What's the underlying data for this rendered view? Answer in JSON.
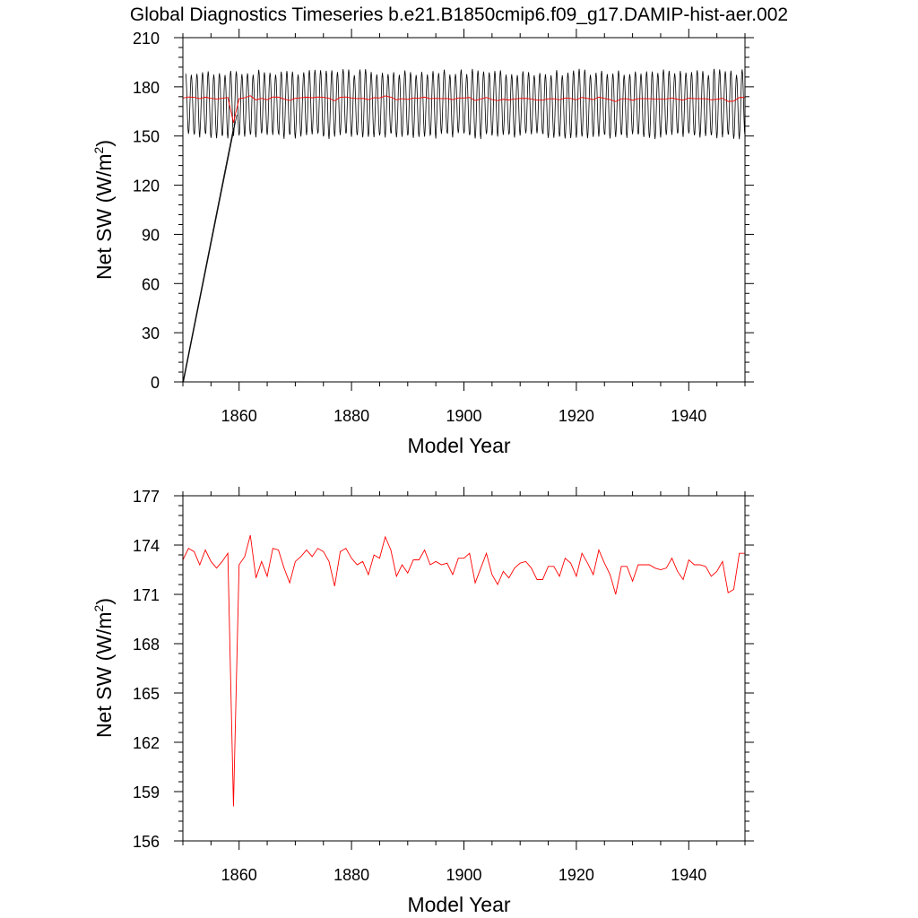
{
  "title": "Global Diagnostics Timeseries b.e21.B1850cmip6.f09_g17.DAMIP-hist-aer.002",
  "colors": {
    "annual": "#ff0000",
    "monthly": "#000000",
    "axes": "#000000"
  },
  "chart_data": [
    {
      "type": "line",
      "panel": "top",
      "xlabel": "Model Year",
      "ylabel_main": "Net SW (W/m",
      "ylabel_sup": "2",
      "ylabel_close": ")",
      "xlim": [
        1850,
        1950
      ],
      "ylim": [
        0,
        210
      ],
      "xticks": [
        1860,
        1880,
        1900,
        1920,
        1940
      ],
      "xtick_labels": [
        "1860",
        "1880",
        "1900",
        "1920",
        "1940"
      ],
      "yticks": [
        0,
        30,
        60,
        90,
        120,
        150,
        180,
        210
      ],
      "ytick_labels": [
        "0",
        "30",
        "60",
        "90",
        "120",
        "150",
        "180",
        "210"
      ],
      "monthly_cycle": {
        "start": 1850.5,
        "end": 1950,
        "peak_mean": 189,
        "trough_mean": 150
      },
      "spinup_lines": [
        {
          "x": [
            1850.0,
            1859.0
          ],
          "y": [
            0,
            155
          ]
        },
        {
          "x": [
            1850.1,
            1859.6
          ],
          "y": [
            0,
            163
          ]
        }
      ],
      "series": [
        {
          "x": [
            1850,
            1851,
            1852,
            1853,
            1854,
            1855,
            1856,
            1857,
            1858,
            1859,
            1860,
            1861,
            1862,
            1863,
            1864,
            1865,
            1866,
            1867,
            1868,
            1869,
            1870,
            1871,
            1872,
            1873,
            1874,
            1875,
            1876,
            1877,
            1878,
            1879,
            1880,
            1881,
            1882,
            1883,
            1884,
            1885,
            1886,
            1887,
            1888,
            1889,
            1890,
            1891,
            1892,
            1893,
            1894,
            1895,
            1896,
            1897,
            1898,
            1899,
            1900,
            1901,
            1902,
            1903,
            1904,
            1905,
            1906,
            1907,
            1908,
            1909,
            1910,
            1911,
            1912,
            1913,
            1914,
            1915,
            1916,
            1917,
            1918,
            1919,
            1920,
            1921,
            1922,
            1923,
            1924,
            1925,
            1926,
            1927,
            1928,
            1929,
            1930,
            1931,
            1932,
            1933,
            1934,
            1935,
            1936,
            1937,
            1938,
            1939,
            1940,
            1941,
            1942,
            1943,
            1944,
            1945,
            1946,
            1947,
            1948,
            1949,
            1950
          ],
          "values": [
            173.1,
            173.8,
            173.6,
            172.8,
            173.7,
            173.0,
            172.6,
            173.0,
            173.5,
            158.1,
            172.8,
            173.3,
            174.6,
            172.0,
            173.0,
            172.1,
            173.8,
            173.7,
            172.6,
            171.7,
            173.0,
            173.3,
            173.7,
            173.3,
            173.8,
            173.6,
            173.0,
            171.5,
            173.6,
            173.8,
            173.2,
            172.8,
            173.0,
            172.2,
            173.4,
            173.2,
            174.5,
            173.7,
            172.1,
            172.8,
            172.3,
            173.1,
            173.1,
            173.7,
            172.8,
            173.0,
            172.8,
            172.9,
            172.2,
            173.2,
            173.2,
            173.5,
            171.7,
            172.6,
            173.5,
            172.2,
            171.6,
            172.4,
            172.0,
            172.6,
            172.9,
            173.0,
            172.6,
            171.9,
            171.9,
            172.7,
            172.7,
            172.1,
            173.2,
            172.9,
            172.1,
            173.5,
            172.9,
            172.2,
            173.7,
            172.9,
            172.2,
            171.0,
            172.7,
            172.7,
            171.8,
            172.8,
            172.8,
            172.8,
            172.6,
            172.5,
            172.6,
            173.2,
            172.4,
            171.9,
            173.1,
            172.8,
            172.8,
            172.7,
            172.1,
            172.4,
            173.0,
            171.1,
            171.3,
            173.5,
            173.5
          ]
        }
      ]
    },
    {
      "type": "line",
      "panel": "bottom",
      "xlabel": "Model Year",
      "ylabel_main": "Net SW (W/m",
      "ylabel_sup": "2",
      "ylabel_close": ")",
      "xlim": [
        1850,
        1950
      ],
      "ylim": [
        156,
        177
      ],
      "xticks": [
        1860,
        1880,
        1900,
        1920,
        1940
      ],
      "xtick_labels": [
        "1860",
        "1880",
        "1900",
        "1920",
        "1940"
      ],
      "yticks": [
        156,
        159,
        162,
        165,
        168,
        171,
        174,
        177
      ],
      "ytick_labels": [
        "156",
        "159",
        "162",
        "165",
        "168",
        "171",
        "174",
        "177"
      ],
      "series": [
        {
          "x": [
            1850,
            1851,
            1852,
            1853,
            1854,
            1855,
            1856,
            1857,
            1858,
            1859,
            1860,
            1861,
            1862,
            1863,
            1864,
            1865,
            1866,
            1867,
            1868,
            1869,
            1870,
            1871,
            1872,
            1873,
            1874,
            1875,
            1876,
            1877,
            1878,
            1879,
            1880,
            1881,
            1882,
            1883,
            1884,
            1885,
            1886,
            1887,
            1888,
            1889,
            1890,
            1891,
            1892,
            1893,
            1894,
            1895,
            1896,
            1897,
            1898,
            1899,
            1900,
            1901,
            1902,
            1903,
            1904,
            1905,
            1906,
            1907,
            1908,
            1909,
            1910,
            1911,
            1912,
            1913,
            1914,
            1915,
            1916,
            1917,
            1918,
            1919,
            1920,
            1921,
            1922,
            1923,
            1924,
            1925,
            1926,
            1927,
            1928,
            1929,
            1930,
            1931,
            1932,
            1933,
            1934,
            1935,
            1936,
            1937,
            1938,
            1939,
            1940,
            1941,
            1942,
            1943,
            1944,
            1945,
            1946,
            1947,
            1948,
            1949,
            1950
          ],
          "values": [
            173.1,
            173.8,
            173.6,
            172.8,
            173.7,
            173.0,
            172.6,
            173.0,
            173.5,
            158.1,
            172.8,
            173.3,
            174.6,
            172.0,
            173.0,
            172.1,
            173.8,
            173.7,
            172.6,
            171.7,
            173.0,
            173.3,
            173.7,
            173.3,
            173.8,
            173.6,
            173.0,
            171.5,
            173.6,
            173.8,
            173.2,
            172.8,
            173.0,
            172.2,
            173.4,
            173.2,
            174.5,
            173.7,
            172.1,
            172.8,
            172.3,
            173.1,
            173.1,
            173.7,
            172.8,
            173.0,
            172.8,
            172.9,
            172.2,
            173.2,
            173.2,
            173.5,
            171.7,
            172.6,
            173.5,
            172.2,
            171.6,
            172.4,
            172.0,
            172.6,
            172.9,
            173.0,
            172.6,
            171.9,
            171.9,
            172.7,
            172.7,
            172.1,
            173.2,
            172.9,
            172.1,
            173.5,
            172.9,
            172.2,
            173.7,
            172.9,
            172.2,
            171.0,
            172.7,
            172.7,
            171.8,
            172.8,
            172.8,
            172.8,
            172.6,
            172.5,
            172.6,
            173.2,
            172.4,
            171.9,
            173.1,
            172.8,
            172.8,
            172.7,
            172.1,
            172.4,
            173.0,
            171.1,
            171.3,
            173.5,
            173.5
          ]
        }
      ]
    }
  ]
}
